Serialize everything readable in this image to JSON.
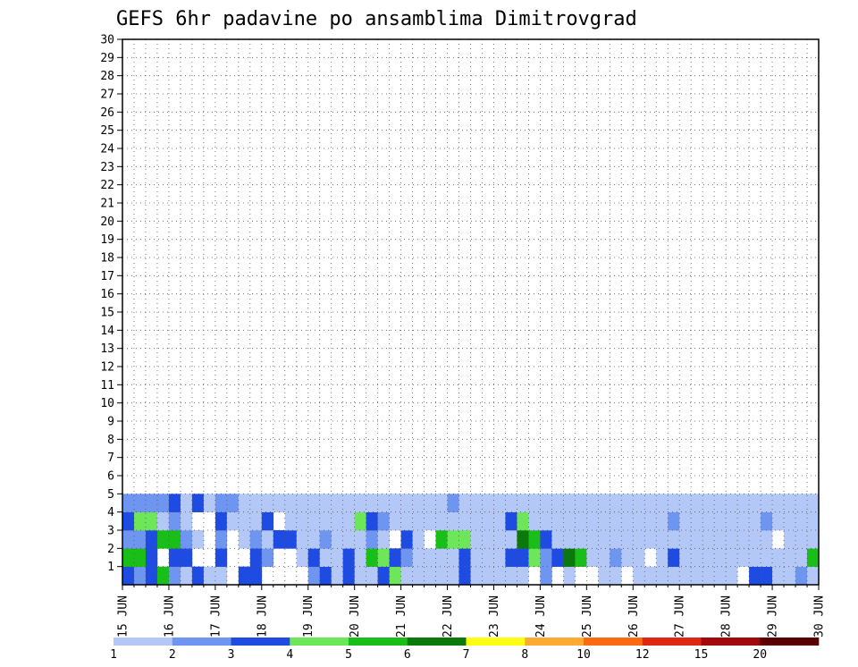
{
  "chart_data": {
    "type": "heatmap",
    "title": "GEFS 6hr padavine po ansamblima Dimitrovgrad",
    "x_tick_labels": [
      "15 JUN",
      "16 JUN",
      "17 JUN",
      "18 JUN",
      "19 JUN",
      "20 JUN",
      "21 JUN",
      "22 JUN",
      "23 JUN",
      "24 JUN",
      "25 JUN",
      "26 JUN",
      "27 JUN",
      "28 JUN",
      "29 JUN",
      "30 JUN"
    ],
    "y_tick_labels": [
      "1",
      "2",
      "3",
      "4",
      "5",
      "6",
      "7",
      "8",
      "9",
      "10",
      "11",
      "12",
      "13",
      "14",
      "15",
      "16",
      "17",
      "18",
      "19",
      "20",
      "21",
      "22",
      "23",
      "24",
      "25",
      "26",
      "27",
      "28",
      "29",
      "30"
    ],
    "x_range": [
      "15 JUN 00Z",
      "30 JUN 00Z"
    ],
    "y_range": [
      0,
      30
    ],
    "time_step_hours": 6,
    "grid": "dotted",
    "colorbar": {
      "position": "bottom",
      "colors": [
        "#b4c8f8",
        "#6e96f0",
        "#1e4be1",
        "#6ee65a",
        "#19be19",
        "#0a780a",
        "#ffff14",
        "#ffaa32",
        "#ff6914",
        "#dc2814",
        "#a00a0a",
        "#5a0000"
      ],
      "labels": [
        "1",
        "2",
        "3",
        "4",
        "5",
        "6",
        "7",
        "8",
        "10",
        "12",
        "15",
        "20"
      ],
      "bounds": [
        1,
        2,
        3,
        4,
        5,
        6,
        7,
        8,
        10,
        12,
        15,
        20
      ]
    },
    "levels": [
      1,
      2,
      3,
      4,
      5,
      6,
      7,
      8,
      9,
      10,
      11,
      12
    ],
    "cells": [
      [
        1,
        1,
        3
      ],
      [
        1,
        2,
        2
      ],
      [
        1,
        3,
        3
      ],
      [
        1,
        4,
        5
      ],
      [
        1,
        5,
        2
      ],
      [
        1,
        6,
        1
      ],
      [
        1,
        7,
        3
      ],
      [
        1,
        8,
        1
      ],
      [
        1,
        9,
        1
      ],
      [
        1,
        11,
        3
      ],
      [
        1,
        12,
        3
      ],
      [
        1,
        17,
        2
      ],
      [
        1,
        18,
        3
      ],
      [
        1,
        19,
        1
      ],
      [
        1,
        20,
        3
      ],
      [
        1,
        21,
        1
      ],
      [
        1,
        22,
        1
      ],
      [
        1,
        23,
        3
      ],
      [
        1,
        24,
        4
      ],
      [
        1,
        25,
        1
      ],
      [
        1,
        26,
        1
      ],
      [
        1,
        27,
        1
      ],
      [
        1,
        28,
        1
      ],
      [
        1,
        29,
        1
      ],
      [
        1,
        30,
        3
      ],
      [
        1,
        31,
        1
      ],
      [
        1,
        32,
        1
      ],
      [
        1,
        33,
        1
      ],
      [
        1,
        34,
        1
      ],
      [
        1,
        35,
        1
      ],
      [
        1,
        37,
        2
      ],
      [
        1,
        39,
        1
      ],
      [
        1,
        42,
        1
      ],
      [
        1,
        43,
        1
      ],
      [
        1,
        45,
        1
      ],
      [
        1,
        46,
        1
      ],
      [
        1,
        47,
        1
      ],
      [
        1,
        48,
        1
      ],
      [
        1,
        49,
        1
      ],
      [
        1,
        50,
        1
      ],
      [
        1,
        51,
        1
      ],
      [
        1,
        52,
        1
      ],
      [
        1,
        53,
        1
      ],
      [
        1,
        55,
        3
      ],
      [
        1,
        56,
        3
      ],
      [
        1,
        57,
        1
      ],
      [
        1,
        58,
        1
      ],
      [
        1,
        59,
        2
      ],
      [
        1,
        60,
        1
      ],
      [
        2,
        1,
        5
      ],
      [
        2,
        2,
        5
      ],
      [
        2,
        3,
        3
      ],
      [
        2,
        5,
        3
      ],
      [
        2,
        6,
        3
      ],
      [
        2,
        9,
        3
      ],
      [
        2,
        12,
        3
      ],
      [
        2,
        13,
        2
      ],
      [
        2,
        16,
        1
      ],
      [
        2,
        17,
        3
      ],
      [
        2,
        18,
        1
      ],
      [
        2,
        19,
        1
      ],
      [
        2,
        20,
        3
      ],
      [
        2,
        21,
        1
      ],
      [
        2,
        22,
        5
      ],
      [
        2,
        23,
        4
      ],
      [
        2,
        24,
        3
      ],
      [
        2,
        25,
        2
      ],
      [
        2,
        26,
        1
      ],
      [
        2,
        27,
        1
      ],
      [
        2,
        28,
        1
      ],
      [
        2,
        29,
        1
      ],
      [
        2,
        30,
        3
      ],
      [
        2,
        31,
        1
      ],
      [
        2,
        32,
        1
      ],
      [
        2,
        33,
        1
      ],
      [
        2,
        34,
        3
      ],
      [
        2,
        35,
        3
      ],
      [
        2,
        36,
        4
      ],
      [
        2,
        37,
        2
      ],
      [
        2,
        38,
        3
      ],
      [
        2,
        39,
        6
      ],
      [
        2,
        40,
        5
      ],
      [
        2,
        41,
        1
      ],
      [
        2,
        42,
        1
      ],
      [
        2,
        43,
        2
      ],
      [
        2,
        44,
        1
      ],
      [
        2,
        45,
        1
      ],
      [
        2,
        47,
        1
      ],
      [
        2,
        48,
        3
      ],
      [
        2,
        49,
        1
      ],
      [
        2,
        50,
        1
      ],
      [
        2,
        51,
        1
      ],
      [
        2,
        52,
        1
      ],
      [
        2,
        53,
        1
      ],
      [
        2,
        54,
        1
      ],
      [
        2,
        55,
        1
      ],
      [
        2,
        56,
        1
      ],
      [
        2,
        57,
        1
      ],
      [
        2,
        58,
        1
      ],
      [
        2,
        59,
        1
      ],
      [
        2,
        60,
        5
      ],
      [
        3,
        1,
        2
      ],
      [
        3,
        2,
        2
      ],
      [
        3,
        3,
        3
      ],
      [
        3,
        4,
        5
      ],
      [
        3,
        5,
        5
      ],
      [
        3,
        6,
        2
      ],
      [
        3,
        7,
        1
      ],
      [
        3,
        9,
        2
      ],
      [
        3,
        11,
        1
      ],
      [
        3,
        12,
        2
      ],
      [
        3,
        13,
        1
      ],
      [
        3,
        14,
        3
      ],
      [
        3,
        15,
        3
      ],
      [
        3,
        16,
        1
      ],
      [
        3,
        17,
        1
      ],
      [
        3,
        18,
        2
      ],
      [
        3,
        19,
        1
      ],
      [
        3,
        20,
        1
      ],
      [
        3,
        21,
        1
      ],
      [
        3,
        22,
        2
      ],
      [
        3,
        23,
        1
      ],
      [
        3,
        25,
        3
      ],
      [
        3,
        26,
        1
      ],
      [
        3,
        28,
        5
      ],
      [
        3,
        29,
        4
      ],
      [
        3,
        30,
        4
      ],
      [
        3,
        31,
        1
      ],
      [
        3,
        32,
        1
      ],
      [
        3,
        33,
        1
      ],
      [
        3,
        34,
        1
      ],
      [
        3,
        35,
        6
      ],
      [
        3,
        36,
        5
      ],
      [
        3,
        37,
        3
      ],
      [
        3,
        38,
        1
      ],
      [
        3,
        39,
        1
      ],
      [
        3,
        40,
        1
      ],
      [
        3,
        41,
        1
      ],
      [
        3,
        42,
        1
      ],
      [
        3,
        43,
        1
      ],
      [
        3,
        44,
        1
      ],
      [
        3,
        45,
        1
      ],
      [
        3,
        46,
        1
      ],
      [
        3,
        47,
        1
      ],
      [
        3,
        48,
        1
      ],
      [
        3,
        49,
        1
      ],
      [
        3,
        50,
        1
      ],
      [
        3,
        51,
        1
      ],
      [
        3,
        52,
        1
      ],
      [
        3,
        53,
        1
      ],
      [
        3,
        54,
        1
      ],
      [
        3,
        55,
        1
      ],
      [
        3,
        56,
        1
      ],
      [
        3,
        58,
        1
      ],
      [
        3,
        59,
        1
      ],
      [
        3,
        60,
        1
      ],
      [
        4,
        1,
        3
      ],
      [
        4,
        2,
        4
      ],
      [
        4,
        3,
        4
      ],
      [
        4,
        4,
        1
      ],
      [
        4,
        5,
        2
      ],
      [
        4,
        6,
        1
      ],
      [
        4,
        9,
        3
      ],
      [
        4,
        10,
        1
      ],
      [
        4,
        11,
        1
      ],
      [
        4,
        12,
        1
      ],
      [
        4,
        13,
        3
      ],
      [
        4,
        15,
        1
      ],
      [
        4,
        16,
        1
      ],
      [
        4,
        17,
        1
      ],
      [
        4,
        18,
        1
      ],
      [
        4,
        19,
        1
      ],
      [
        4,
        20,
        1
      ],
      [
        4,
        21,
        4
      ],
      [
        4,
        22,
        3
      ],
      [
        4,
        23,
        2
      ],
      [
        4,
        24,
        1
      ],
      [
        4,
        25,
        1
      ],
      [
        4,
        26,
        1
      ],
      [
        4,
        27,
        1
      ],
      [
        4,
        28,
        1
      ],
      [
        4,
        29,
        1
      ],
      [
        4,
        30,
        1
      ],
      [
        4,
        31,
        1
      ],
      [
        4,
        32,
        1
      ],
      [
        4,
        33,
        1
      ],
      [
        4,
        34,
        3
      ],
      [
        4,
        35,
        4
      ],
      [
        4,
        36,
        1
      ],
      [
        4,
        37,
        1
      ],
      [
        4,
        38,
        1
      ],
      [
        4,
        39,
        1
      ],
      [
        4,
        40,
        1
      ],
      [
        4,
        41,
        1
      ],
      [
        4,
        42,
        1
      ],
      [
        4,
        43,
        1
      ],
      [
        4,
        44,
        1
      ],
      [
        4,
        45,
        1
      ],
      [
        4,
        46,
        1
      ],
      [
        4,
        47,
        1
      ],
      [
        4,
        48,
        2
      ],
      [
        4,
        49,
        1
      ],
      [
        4,
        50,
        1
      ],
      [
        4,
        51,
        1
      ],
      [
        4,
        52,
        1
      ],
      [
        4,
        53,
        1
      ],
      [
        4,
        54,
        1
      ],
      [
        4,
        55,
        1
      ],
      [
        4,
        56,
        2
      ],
      [
        4,
        57,
        1
      ],
      [
        4,
        58,
        1
      ],
      [
        4,
        59,
        1
      ],
      [
        4,
        60,
        1
      ],
      [
        5,
        1,
        2
      ],
      [
        5,
        2,
        2
      ],
      [
        5,
        3,
        2
      ],
      [
        5,
        4,
        2
      ],
      [
        5,
        5,
        3
      ],
      [
        5,
        6,
        1
      ],
      [
        5,
        7,
        3
      ],
      [
        5,
        8,
        1
      ],
      [
        5,
        9,
        2
      ],
      [
        5,
        10,
        2
      ],
      [
        5,
        11,
        1
      ],
      [
        5,
        12,
        1
      ],
      [
        5,
        13,
        1
      ],
      [
        5,
        14,
        1
      ],
      [
        5,
        15,
        1
      ],
      [
        5,
        16,
        1
      ],
      [
        5,
        17,
        1
      ],
      [
        5,
        18,
        1
      ],
      [
        5,
        19,
        1
      ],
      [
        5,
        20,
        1
      ],
      [
        5,
        21,
        1
      ],
      [
        5,
        22,
        1
      ],
      [
        5,
        23,
        1
      ],
      [
        5,
        24,
        1
      ],
      [
        5,
        25,
        1
      ],
      [
        5,
        26,
        1
      ],
      [
        5,
        27,
        1
      ],
      [
        5,
        28,
        1
      ],
      [
        5,
        29,
        2
      ],
      [
        5,
        30,
        1
      ],
      [
        5,
        31,
        1
      ],
      [
        5,
        32,
        1
      ],
      [
        5,
        33,
        1
      ],
      [
        5,
        34,
        1
      ],
      [
        5,
        35,
        1
      ],
      [
        5,
        36,
        1
      ],
      [
        5,
        37,
        1
      ],
      [
        5,
        38,
        1
      ],
      [
        5,
        39,
        1
      ],
      [
        5,
        40,
        1
      ],
      [
        5,
        41,
        1
      ],
      [
        5,
        42,
        1
      ],
      [
        5,
        43,
        1
      ],
      [
        5,
        44,
        1
      ],
      [
        5,
        45,
        1
      ],
      [
        5,
        46,
        1
      ],
      [
        5,
        47,
        1
      ],
      [
        5,
        48,
        1
      ],
      [
        5,
        49,
        1
      ],
      [
        5,
        50,
        1
      ],
      [
        5,
        51,
        1
      ],
      [
        5,
        52,
        1
      ],
      [
        5,
        53,
        1
      ],
      [
        5,
        54,
        1
      ],
      [
        5,
        55,
        1
      ],
      [
        5,
        56,
        1
      ],
      [
        5,
        57,
        1
      ],
      [
        5,
        58,
        1
      ],
      [
        5,
        59,
        1
      ],
      [
        5,
        60,
        1
      ]
    ]
  }
}
